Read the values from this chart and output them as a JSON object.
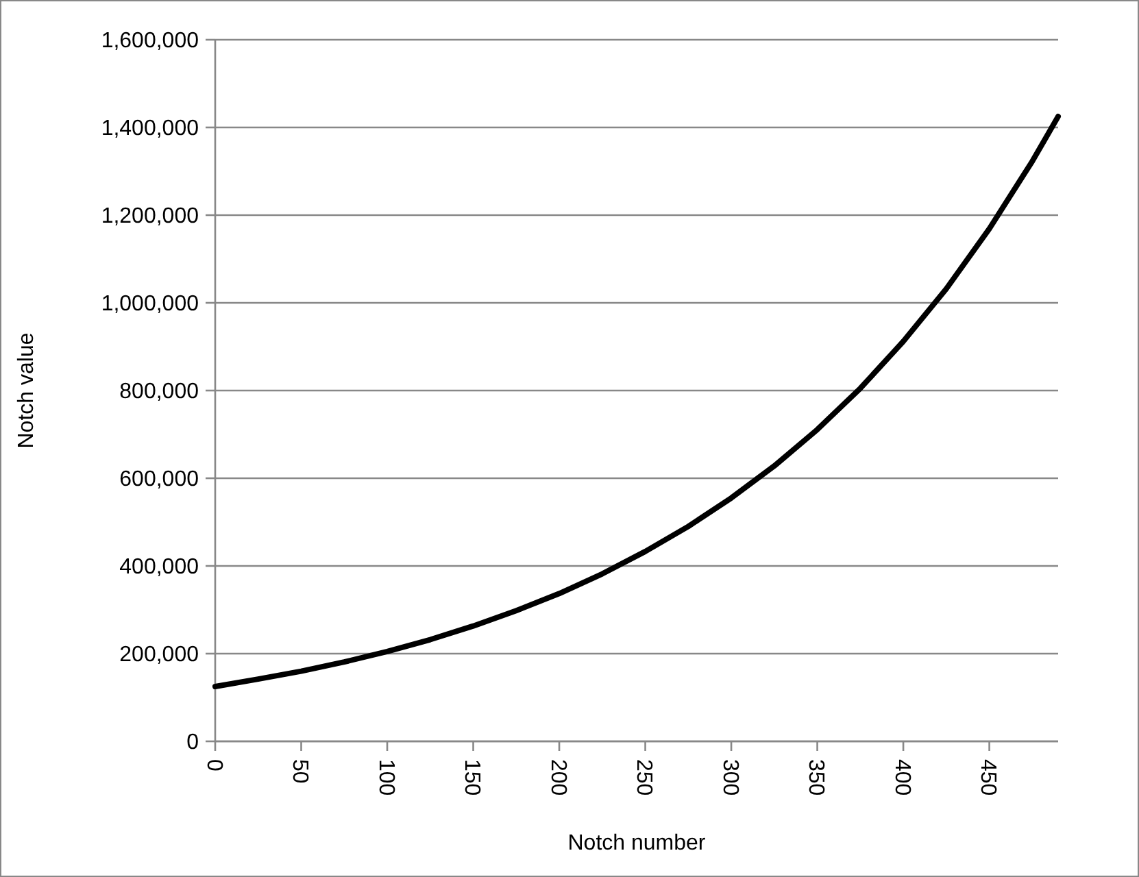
{
  "chart_data": {
    "type": "line",
    "xlabel": "Notch number",
    "ylabel": "Notch value",
    "x": [
      0,
      25,
      50,
      75,
      100,
      125,
      150,
      175,
      200,
      225,
      250,
      275,
      300,
      325,
      350,
      375,
      400,
      425,
      450,
      475,
      490
    ],
    "series": [
      {
        "color": "#000000",
        "values": [
          125000,
          142000,
          160000,
          181000,
          205000,
          232000,
          263000,
          298000,
          337000,
          382000,
          433000,
          490000,
          555000,
          628000,
          711000,
          805000,
          912000,
          1032000,
          1169000,
          1323000,
          1425000
        ]
      }
    ],
    "xlim": [
      0,
      490
    ],
    "xticks": [
      0,
      50,
      100,
      150,
      200,
      250,
      300,
      350,
      400,
      450
    ],
    "ylim": [
      0,
      1600000
    ],
    "yticks": [
      {
        "value": 0,
        "label": "0"
      },
      {
        "value": 200000,
        "label": "200,000"
      },
      {
        "value": 400000,
        "label": "400,000"
      },
      {
        "value": 600000,
        "label": "600,000"
      },
      {
        "value": 800000,
        "label": "800,000"
      },
      {
        "value": 1000000,
        "label": "1,000,000"
      },
      {
        "value": 1200000,
        "label": "1,200,000"
      },
      {
        "value": 1400000,
        "label": "1,400,000"
      },
      {
        "value": 1600000,
        "label": "1,600,000"
      }
    ],
    "grid": "y",
    "marker": "none",
    "line_style": "solid"
  }
}
